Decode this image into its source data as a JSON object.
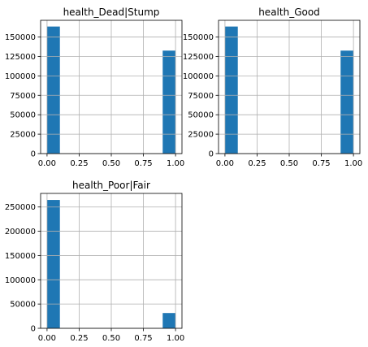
{
  "chart_data": [
    {
      "type": "bar",
      "title": "health_Dead|Stump",
      "xlim": [
        -0.05,
        1.05
      ],
      "ylim": [
        0,
        171500
      ],
      "xticks": [
        "0.00",
        "0.25",
        "0.50",
        "0.75",
        "1.00"
      ],
      "yticks": [
        "0",
        "25000",
        "50000",
        "75000",
        "100000",
        "125000",
        "150000"
      ],
      "grid": true,
      "bins": [
        {
          "x0": 0.0,
          "x1": 0.1,
          "value": 163500
        },
        {
          "x0": 0.9,
          "x1": 1.0,
          "value": 132500
        }
      ],
      "bar_color": "#1f77b4"
    },
    {
      "type": "bar",
      "title": "health_Good",
      "xlim": [
        -0.05,
        1.05
      ],
      "ylim": [
        0,
        171500
      ],
      "xticks": [
        "0.00",
        "0.25",
        "0.50",
        "0.75",
        "1.00"
      ],
      "yticks": [
        "0",
        "25000",
        "50000",
        "75000",
        "100000",
        "125000",
        "150000"
      ],
      "grid": true,
      "bins": [
        {
          "x0": 0.0,
          "x1": 0.1,
          "value": 163500
        },
        {
          "x0": 0.9,
          "x1": 1.0,
          "value": 132500
        }
      ],
      "bar_color": "#1f77b4"
    },
    {
      "type": "bar",
      "title": "health_Poor|Fair",
      "xlim": [
        -0.05,
        1.05
      ],
      "ylim": [
        0,
        278000
      ],
      "xticks": [
        "0.00",
        "0.25",
        "0.50",
        "0.75",
        "1.00"
      ],
      "yticks": [
        "0",
        "50000",
        "100000",
        "150000",
        "200000",
        "250000"
      ],
      "grid": true,
      "bins": [
        {
          "x0": 0.0,
          "x1": 0.1,
          "value": 264500
        },
        {
          "x0": 0.9,
          "x1": 1.0,
          "value": 31500
        }
      ],
      "bar_color": "#1f77b4"
    }
  ]
}
